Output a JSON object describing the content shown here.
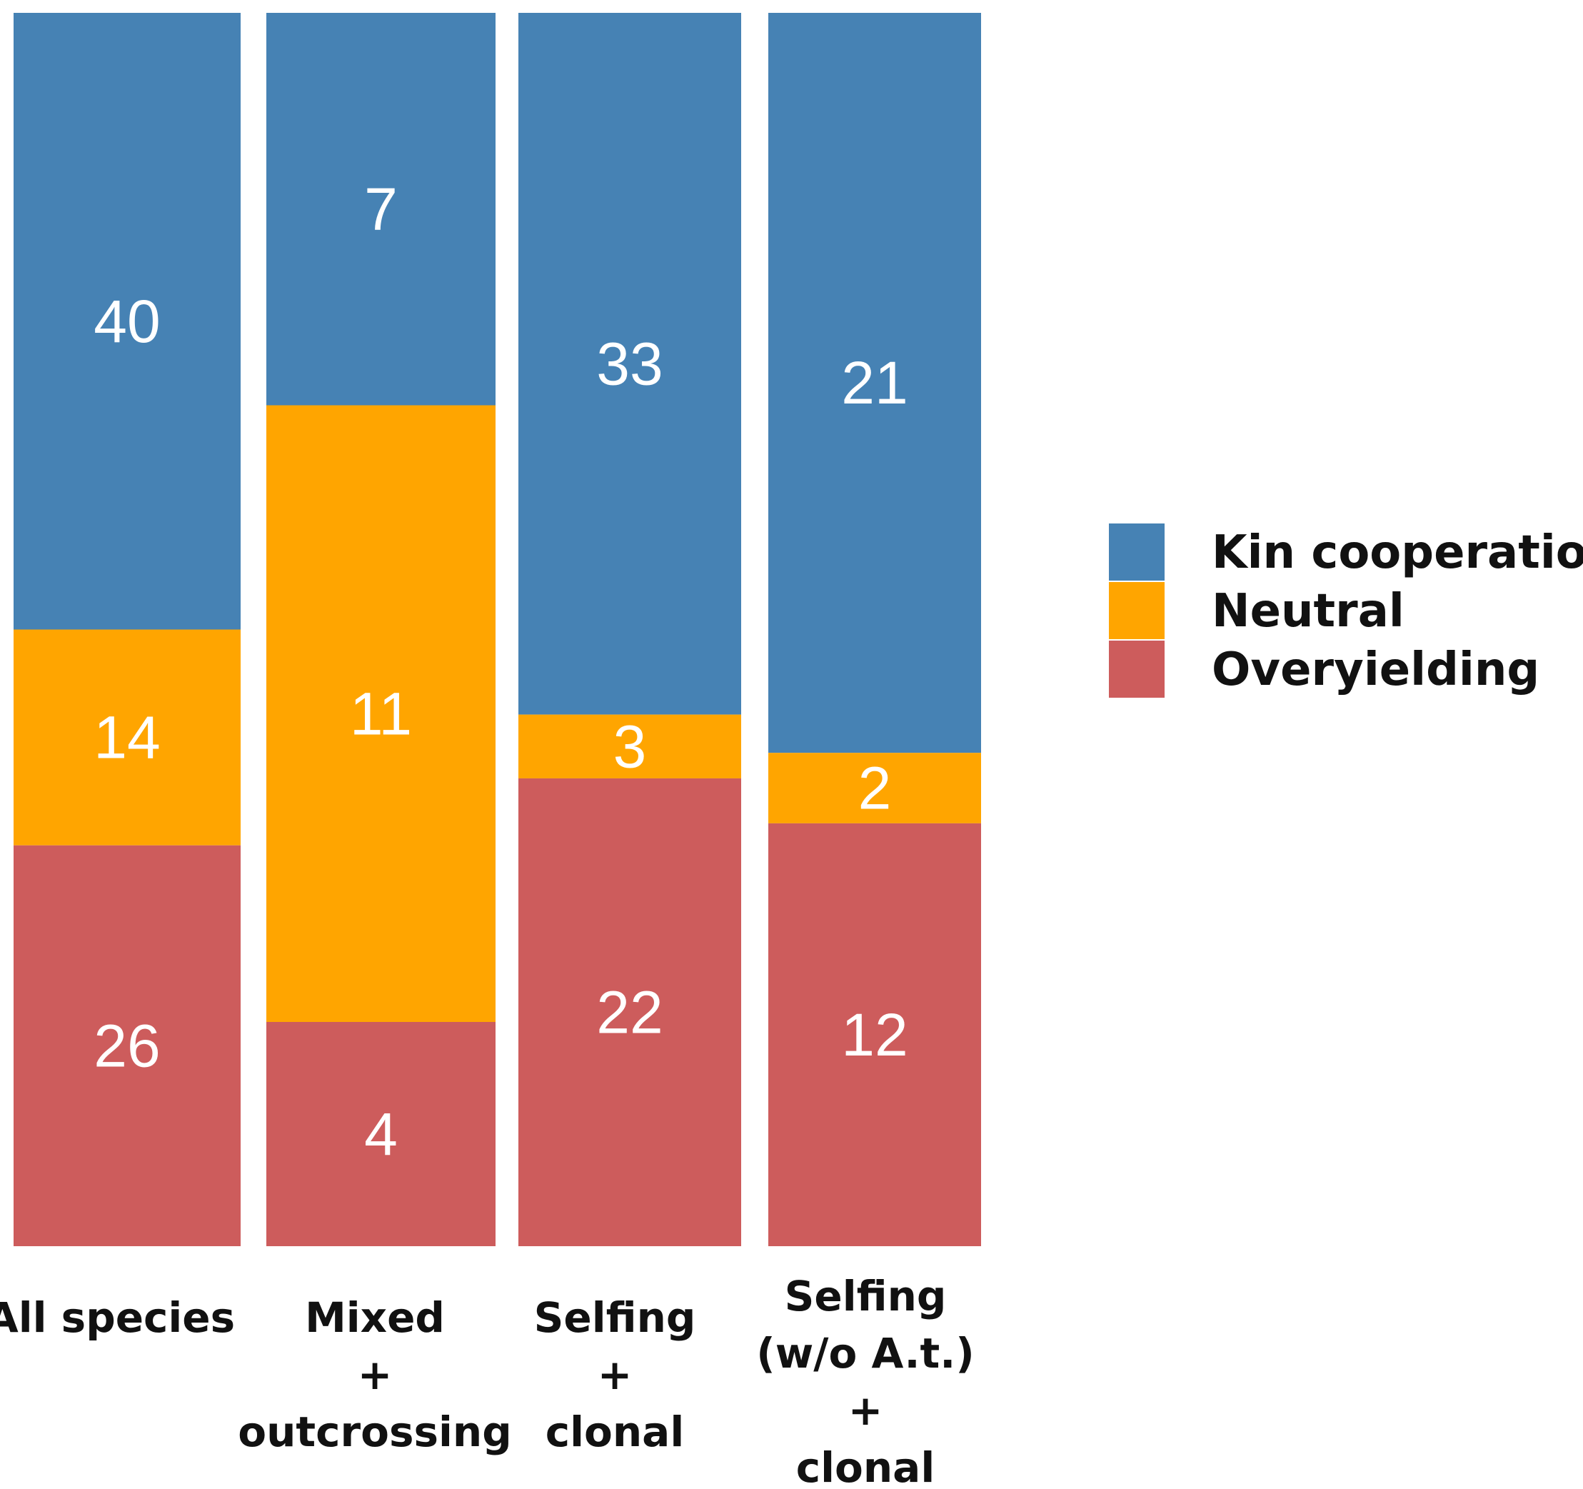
{
  "chart_data": {
    "type": "bar",
    "stacked": true,
    "normalized": true,
    "title": "",
    "xlabel": "",
    "ylabel": "",
    "categories": [
      [
        "All species"
      ],
      [
        "Mixed",
        "+",
        "outcrossing"
      ],
      [
        "Selfing",
        "+",
        "clonal"
      ],
      [
        "Selfing",
        "(w/o A.t.)",
        "+",
        "clonal"
      ]
    ],
    "series": [
      {
        "name": "Kin cooperation",
        "color": "#4682B4",
        "values": [
          40,
          7,
          33,
          21
        ]
      },
      {
        "name": "Neutral",
        "color": "#FFA500",
        "values": [
          14,
          11,
          3,
          2
        ]
      },
      {
        "name": "Overyielding",
        "color": "#CD5C5C",
        "values": [
          26,
          4,
          22,
          12
        ]
      }
    ],
    "legend": {
      "position": "right",
      "order": [
        "Kin cooperation",
        "Neutral",
        "Overyielding"
      ]
    },
    "grid": false,
    "axes_visible": false
  }
}
